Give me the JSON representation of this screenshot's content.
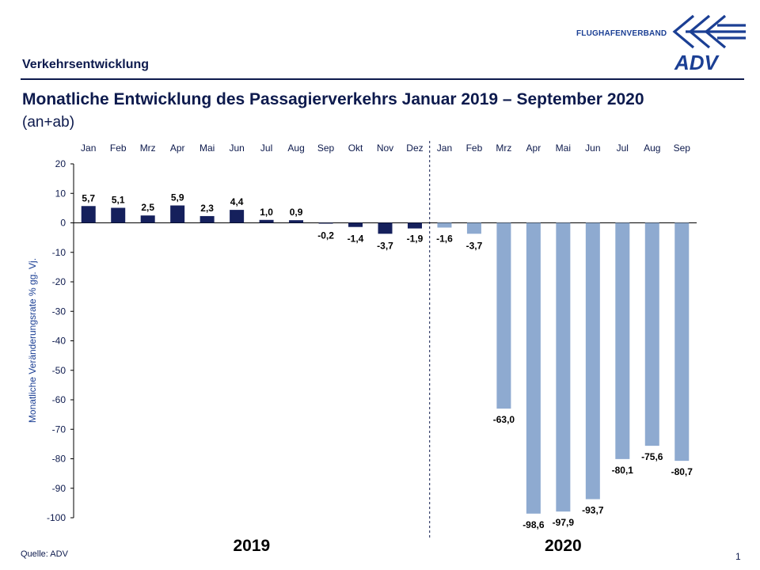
{
  "header": {
    "section_title": "Verkehrsentwicklung",
    "brand_name": "FLUGHAFENVERBAND",
    "logo_text": "ADV"
  },
  "colors": {
    "navy": "#0d1a4d",
    "bar_2019": "#15205c",
    "bar_2020": "#8eaad0",
    "brand_blue": "#1b3f94"
  },
  "footer": {
    "source": "Quelle: ADV",
    "page_number": "1"
  },
  "chart_data": {
    "type": "bar",
    "title": "Monatliche Entwicklung des Passagierverkehrs  Januar 2019 – September 2020",
    "subtitle": "(an+ab)",
    "ylabel": "Monatliche Veränderungsrate % gg. Vj.",
    "xlabel": "",
    "ylim": [
      -100,
      20
    ],
    "yticks": [
      20,
      10,
      0,
      -10,
      -20,
      -30,
      -40,
      -50,
      -60,
      -70,
      -80,
      -90,
      -100
    ],
    "grid": false,
    "categories": [
      "Jan",
      "Feb",
      "Mrz",
      "Apr",
      "Mai",
      "Jun",
      "Jul",
      "Aug",
      "Sep",
      "Okt",
      "Nov",
      "Dez",
      "Jan",
      "Feb",
      "Mrz",
      "Apr",
      "Mai",
      "Jun",
      "Jul",
      "Aug",
      "Sep"
    ],
    "values": [
      5.7,
      5.1,
      2.5,
      5.9,
      2.3,
      4.4,
      1.0,
      0.9,
      -0.2,
      -1.4,
      -3.7,
      -1.9,
      -1.6,
      -3.7,
      -63.0,
      -98.6,
      -97.9,
      -93.7,
      -80.1,
      -75.6,
      -80.7
    ],
    "value_labels": [
      "5,7",
      "5,1",
      "2,5",
      "5,9",
      "2,3",
      "4,4",
      "1,0",
      "0,9",
      "-0,2",
      "-1,4",
      "-3,7",
      "-1,9",
      "-1,6",
      "-3,7",
      "-63,0",
      "-98,6",
      "-97,9",
      "-93,7",
      "-80,1",
      "-75,6",
      "-80,7"
    ],
    "series_year": [
      2019,
      2019,
      2019,
      2019,
      2019,
      2019,
      2019,
      2019,
      2019,
      2019,
      2019,
      2019,
      2020,
      2020,
      2020,
      2020,
      2020,
      2020,
      2020,
      2020,
      2020
    ],
    "groups": [
      {
        "label": "2019",
        "start": 0,
        "end": 11
      },
      {
        "label": "2020",
        "start": 12,
        "end": 20
      }
    ]
  }
}
